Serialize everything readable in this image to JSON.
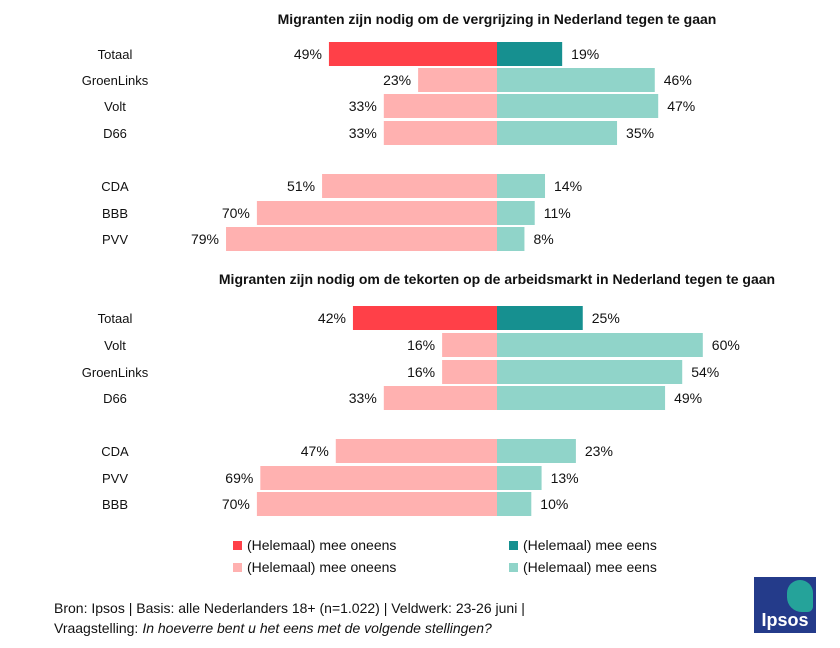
{
  "chart_data": {
    "type": "bar",
    "orientation": "horizontal-diverging",
    "colors": {
      "disagree_total": "#ff4048",
      "agree_total": "#169090",
      "disagree": "#ffb1b0",
      "agree": "#90d4c9"
    },
    "panels": [
      {
        "title": "Migranten zijn nodig om de vergrijzing in Nederland tegen te gaan",
        "groups": [
          {
            "label": "Totaal",
            "disagree": 49,
            "agree": 19,
            "total": true
          },
          {
            "label": "GroenLinks",
            "disagree": 23,
            "agree": 46
          },
          {
            "label": "Volt",
            "disagree": 33,
            "agree": 47
          },
          {
            "label": "D66",
            "disagree": 33,
            "agree": 35
          },
          {
            "label": "CDA",
            "disagree": 51,
            "agree": 14
          },
          {
            "label": "BBB",
            "disagree": 70,
            "agree": 11
          },
          {
            "label": "PVV",
            "disagree": 79,
            "agree": 8
          }
        ]
      },
      {
        "title": "Migranten zijn nodig om de tekorten op de arbeidsmarkt in Nederland tegen te gaan",
        "groups": [
          {
            "label": "Totaal",
            "disagree": 42,
            "agree": 25,
            "total": true
          },
          {
            "label": "Volt",
            "disagree": 16,
            "agree": 60
          },
          {
            "label": "GroenLinks",
            "disagree": 16,
            "agree": 54
          },
          {
            "label": "D66",
            "disagree": 33,
            "agree": 49
          },
          {
            "label": "CDA",
            "disagree": 47,
            "agree": 23
          },
          {
            "label": "PVV",
            "disagree": 69,
            "agree": 13
          },
          {
            "label": "BBB",
            "disagree": 70,
            "agree": 10
          }
        ]
      }
    ],
    "legend": [
      {
        "label": "(Helemaal) mee oneens",
        "color": "#ff4048"
      },
      {
        "label": "(Helemaal) mee eens",
        "color": "#169090"
      },
      {
        "label": "(Helemaal) mee oneens",
        "color": "#ffb1b0"
      },
      {
        "label": "(Helemaal) mee eens",
        "color": "#90d4c9"
      }
    ]
  },
  "footer": {
    "source": "Bron: Ipsos | Basis: alle Nederlanders 18+ (n=1.022) | Veldwerk: 23-26 juni |",
    "question_label": "Vraagstelling:",
    "question": "In hoeverre bent u het eens met de volgende stellingen?"
  },
  "logo": {
    "text": "Ipsos"
  }
}
